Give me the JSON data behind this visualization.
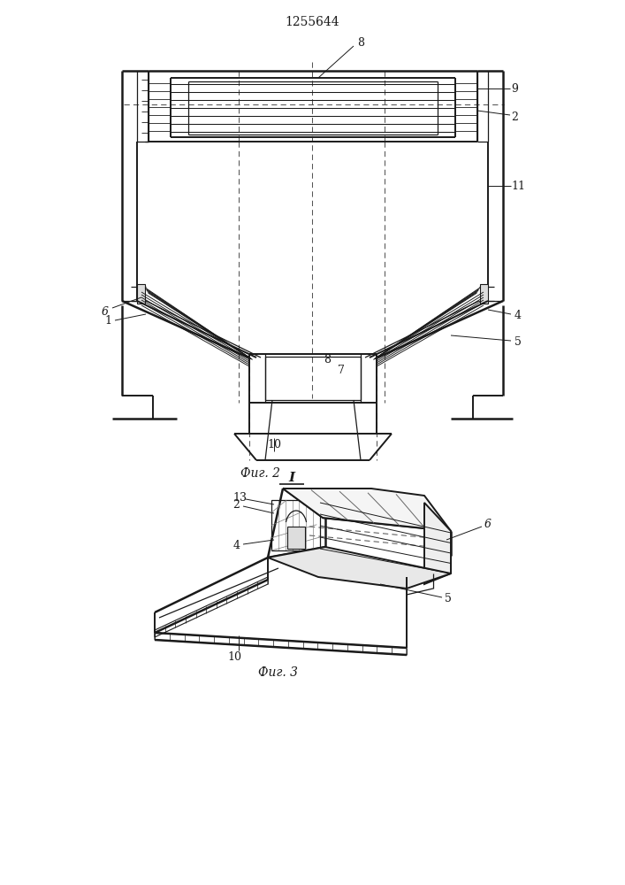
{
  "title": "1255644",
  "fig2_label": "Фиг. 2",
  "fig3_label": "Фиг. 3",
  "fig_I_label": "I",
  "bg_color": "#ffffff",
  "line_color": "#1a1a1a"
}
